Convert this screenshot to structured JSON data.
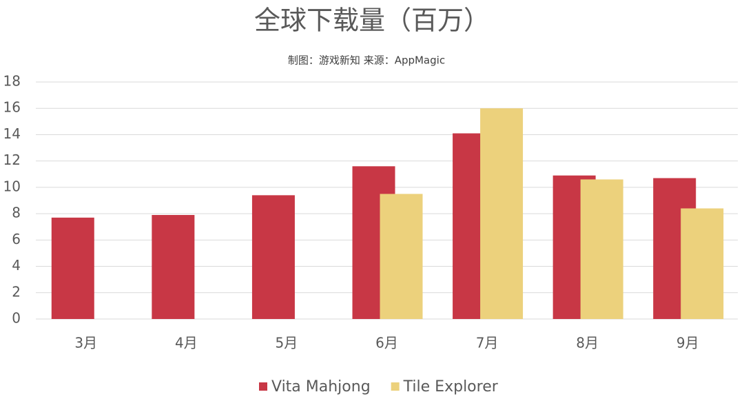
{
  "chart_data": {
    "type": "bar",
    "title": "全球下载量（百万）",
    "subtitle": "制图：游戏新知  来源：AppMagic",
    "categories": [
      "3月",
      "4月",
      "5月",
      "6月",
      "7月",
      "8月",
      "9月"
    ],
    "series": [
      {
        "name": "Vita Mahjong",
        "color": "#c83745",
        "values": [
          7.7,
          7.9,
          9.4,
          11.6,
          14.1,
          10.9,
          10.7
        ]
      },
      {
        "name": "Tile Explorer",
        "color": "#ecd17c",
        "values": [
          null,
          null,
          null,
          9.5,
          16.0,
          10.6,
          8.4
        ]
      }
    ],
    "ylim": [
      0,
      18
    ],
    "yticks": [
      0,
      2,
      4,
      6,
      8,
      10,
      12,
      14,
      16,
      18
    ],
    "grid": true,
    "legend": "bottom"
  }
}
